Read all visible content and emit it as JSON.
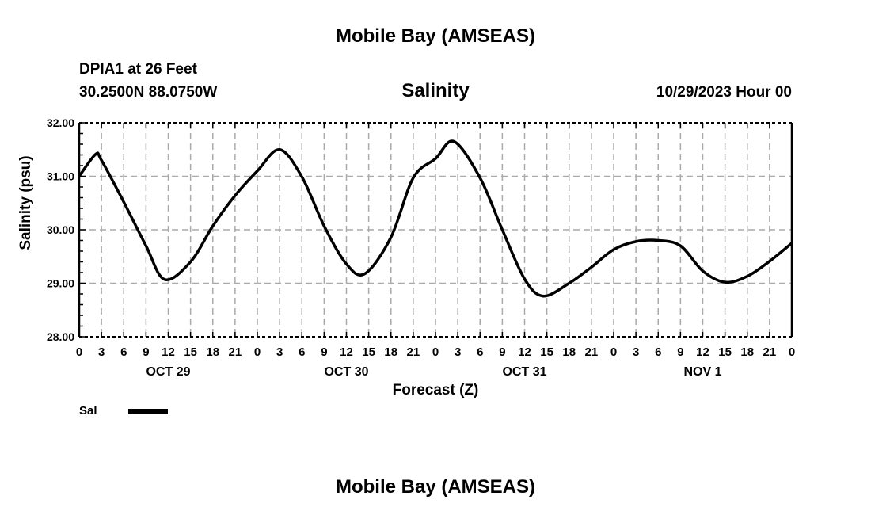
{
  "header": {
    "title": "Mobile Bay (AMSEAS)",
    "station": "DPIA1 at 26 Feet",
    "location": "30.2500N  88.0750W",
    "datetime": "10/29/2023 Hour 00",
    "footer_title": "Mobile Bay (AMSEAS)"
  },
  "chart_data": {
    "type": "line",
    "title": "Salinity",
    "xlabel": "Forecast (Z)",
    "ylabel": "Salinity (psu)",
    "ylim": [
      28,
      32
    ],
    "xlim": [
      0,
      96
    ],
    "yticks": [
      "28.00",
      "29.00",
      "30.00",
      "31.00",
      "32.00"
    ],
    "ytick_values": [
      28,
      29,
      30,
      31,
      32
    ],
    "xtick_labels": [
      "0",
      "3",
      "6",
      "9",
      "12",
      "15",
      "18",
      "21",
      "0",
      "3",
      "6",
      "9",
      "12",
      "15",
      "18",
      "21",
      "0",
      "3",
      "6",
      "9",
      "12",
      "15",
      "18",
      "21",
      "0",
      "3",
      "6",
      "9",
      "12",
      "15",
      "18",
      "21",
      "0"
    ],
    "date_labels": [
      {
        "label": "OCT 29",
        "hour": 12
      },
      {
        "label": "OCT 30",
        "hour": 36
      },
      {
        "label": "OCT 31",
        "hour": 60
      },
      {
        "label": "NOV 1",
        "hour": 84
      }
    ],
    "grid": true,
    "legend": {
      "position": "bottom-left",
      "entries": [
        {
          "name": "Sal",
          "color": "#000000"
        }
      ]
    },
    "series": [
      {
        "name": "Sal",
        "color": "#000000",
        "x": [
          0,
          2.2,
          3,
          6,
          9,
          11.5,
          15,
          18,
          21,
          24,
          27,
          30,
          33,
          36,
          38.5,
          42,
          45,
          48,
          50.5,
          54,
          57,
          60,
          62.5,
          66,
          69,
          72,
          75,
          78,
          81,
          84,
          87,
          90,
          93,
          96
        ],
        "y": [
          31.0,
          31.41,
          31.3,
          30.52,
          29.7,
          29.07,
          29.4,
          30.07,
          30.64,
          31.1,
          31.5,
          30.99,
          30.07,
          29.36,
          29.18,
          29.86,
          30.97,
          31.33,
          31.65,
          30.97,
          30.0,
          29.08,
          28.76,
          29.0,
          29.3,
          29.63,
          29.78,
          29.8,
          29.7,
          29.23,
          29.02,
          29.13,
          29.41,
          29.75
        ]
      }
    ]
  }
}
